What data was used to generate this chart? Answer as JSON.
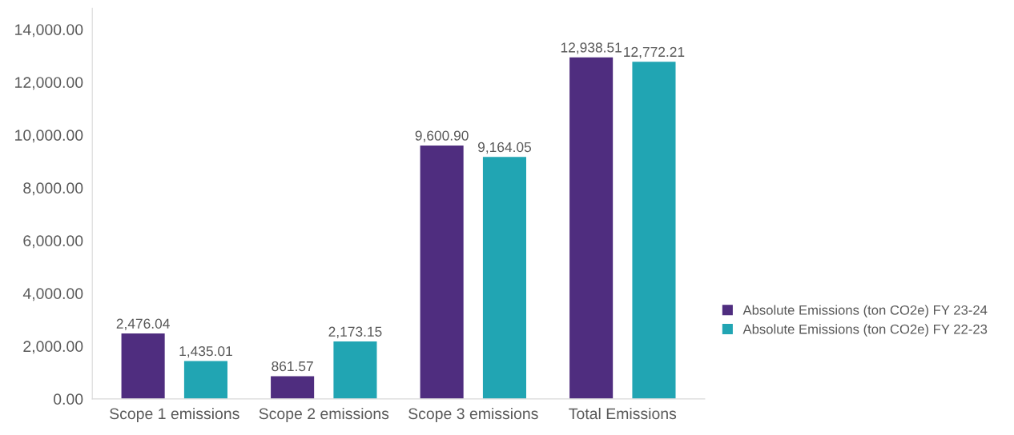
{
  "chart_data": {
    "type": "bar",
    "categories": [
      "Scope 1 emissions",
      "Scope 2 emissions",
      "Scope 3 emissions",
      "Total Emissions"
    ],
    "series": [
      {
        "name": "Absolute Emissions (ton CO2e) FY 23-24",
        "color": "#4f2d7f",
        "values": [
          2476.04,
          861.57,
          9600.9,
          12938.51
        ],
        "value_labels": [
          "2,476.04",
          "861.57",
          "9,600.90",
          "12,938.51"
        ]
      },
      {
        "name": "Absolute Emissions (ton CO2e) FY 22-23",
        "color": "#21a5b3",
        "values": [
          1435.01,
          2173.15,
          9164.05,
          12772.21
        ],
        "value_labels": [
          "1,435.01",
          "2,173.15",
          "9,164.05",
          "12,772.21"
        ]
      }
    ],
    "ylim": [
      0,
      14800
    ],
    "yticks": [
      {
        "value": 0,
        "label": "0.00"
      },
      {
        "value": 2000,
        "label": "2,000.00"
      },
      {
        "value": 4000,
        "label": "4,000.00"
      },
      {
        "value": 6000,
        "label": "6,000.00"
      },
      {
        "value": 8000,
        "label": "8,000.00"
      },
      {
        "value": 10000,
        "label": "10,000.00"
      },
      {
        "value": 12000,
        "label": "12,000.00"
      },
      {
        "value": 14000,
        "label": "14,000.00"
      }
    ],
    "grid": false,
    "legend": "right"
  }
}
